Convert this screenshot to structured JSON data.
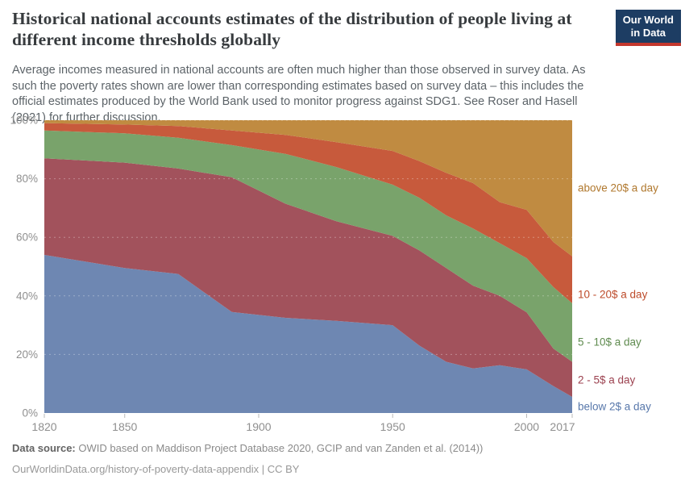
{
  "header": {
    "title": "Historical national accounts estimates of the distribution of people living at different income thresholds globally",
    "subtitle": "Average incomes measured in national accounts are often much higher than those observed in survey data. As such the poverty rates shown are lower than corresponding estimates based on survey data – this includes the official estimates produced by the World Bank used to monitor progress against SDG1. See Roser and Hasell (2021) for further discussion.",
    "logo": {
      "line1": "Our World",
      "line2": "in Data",
      "bg_color": "#1d3d63",
      "bar_color": "#c4372d"
    }
  },
  "chart_data": {
    "type": "area",
    "stacked": true,
    "unit": "%",
    "grid": "horizontal dashed lines every 20%, drawn over areas",
    "legend_position": "labels at right edge of plot",
    "x": [
      1820,
      1850,
      1870,
      1890,
      1910,
      1929,
      1950,
      1960,
      1970,
      1980,
      1990,
      2000,
      2010,
      2017
    ],
    "series": [
      {
        "name": "below 2$ a day",
        "color": "#6e87b2",
        "label_color": "#5878ab",
        "label_anchor_pct": 2.2,
        "values": [
          54,
          49.5,
          47.5,
          34.5,
          32.5,
          31.5,
          30,
          23,
          17.5,
          15.2,
          16.3,
          14.9,
          9.2,
          5.5
        ]
      },
      {
        "name": "2 - 5$ a day",
        "color": "#a2525c",
        "label_color": "#9c4250",
        "label_anchor_pct": 11.3,
        "values": [
          33,
          36,
          36,
          46,
          39,
          34,
          30.5,
          32.5,
          32,
          28.3,
          23.7,
          19.5,
          12.8,
          12
        ]
      },
      {
        "name": "5 - 10$ a day",
        "color": "#79a36b",
        "label_color": "#5f8b4f",
        "label_anchor_pct": 24.2,
        "values": [
          9.5,
          10,
          10.5,
          11,
          17,
          18.5,
          17.5,
          18,
          18,
          19.5,
          18,
          18.5,
          21,
          20
        ]
      },
      {
        "name": "10 - 20$ a day",
        "color": "#c75a3c",
        "label_color": "#bd4b2a",
        "label_anchor_pct": 40.5,
        "values": [
          2.5,
          3,
          4,
          5,
          6.5,
          8.5,
          11.5,
          12.5,
          14.5,
          15.5,
          14,
          16.5,
          15.4,
          16
        ]
      },
      {
        "name": "above 20$ a day",
        "color": "#c08b41",
        "label_color": "#b0782e",
        "label_anchor_pct": 76.9,
        "values": [
          1,
          1.5,
          2,
          3.5,
          5,
          7.5,
          10.5,
          14,
          18,
          21.5,
          28,
          30.6,
          41.6,
          46.5
        ]
      }
    ],
    "ylim": [
      0,
      100
    ],
    "y_ticks": [
      {
        "v": 0,
        "label": "0%"
      },
      {
        "v": 20,
        "label": "20%"
      },
      {
        "v": 40,
        "label": "40%"
      },
      {
        "v": 60,
        "label": "60%"
      },
      {
        "v": 80,
        "label": "80%"
      },
      {
        "v": 100,
        "label": "100%"
      }
    ],
    "x_ticks": [
      {
        "v": 1820,
        "label": "1820"
      },
      {
        "v": 1850,
        "label": "1850"
      },
      {
        "v": 1900,
        "label": "1900"
      },
      {
        "v": 1950,
        "label": "1950"
      },
      {
        "v": 2000,
        "label": "2000"
      },
      {
        "v": 2017,
        "label": "2017"
      }
    ],
    "axis_text_color": "#8f8f8f"
  },
  "footer": {
    "source_label": "Data source:",
    "source_text": " OWID based on Maddison Project Database 2020, GCIP and van Zanden et al. (2014))",
    "url_line": "OurWorldinData.org/history-of-poverty-data-appendix | CC BY"
  }
}
